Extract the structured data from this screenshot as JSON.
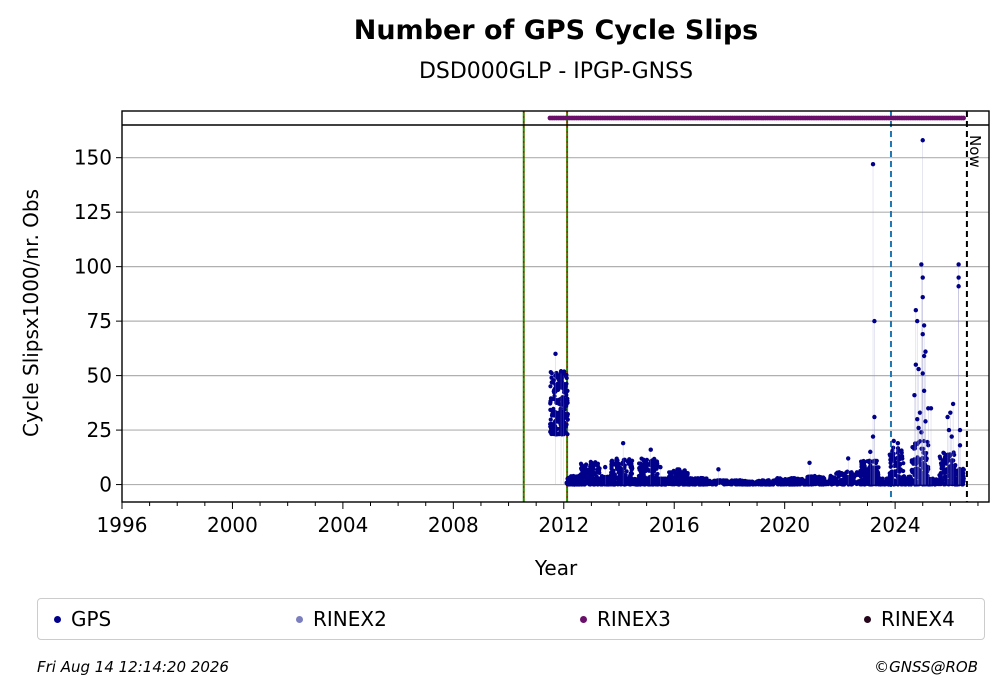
{
  "chart_data": {
    "type": "scatter",
    "title": "Number of GPS Cycle Slips",
    "subtitle": "DSD000GLP - IPGP-GNSS",
    "xlabel": "Year",
    "ylabel": "Cycle Slipsx1000/nr. Obs",
    "xlim": [
      1996,
      2027.4
    ],
    "ylim": [
      -8,
      165
    ],
    "x_ticks": [
      1996,
      2000,
      2004,
      2008,
      2012,
      2016,
      2020,
      2024
    ],
    "y_ticks": [
      0,
      25,
      50,
      75,
      100,
      125,
      150
    ],
    "grid": "horizontal",
    "vlines": [
      {
        "x": 2010.55,
        "color": "#2e8b00",
        "style": "dotted-red"
      },
      {
        "x": 2012.12,
        "color": "#2e8b00",
        "style": "dotted-red"
      },
      {
        "x": 2023.85,
        "color": "#1f77b4",
        "style": "dashed"
      },
      {
        "x": 2026.6,
        "color": "#000000",
        "style": "dashed",
        "label": "Now"
      }
    ],
    "rinex3_band": [
      [
        2011.5,
        2026.5
      ]
    ],
    "series": [
      {
        "name": "GPS",
        "color": "#00008b",
        "clusters": [
          {
            "x0": 2011.5,
            "x1": 2012.15,
            "ymin": 23,
            "ymax": 52,
            "n": 220
          },
          {
            "x0": 2012.1,
            "x1": 2012.6,
            "ymin": 0,
            "ymax": 4,
            "n": 90
          },
          {
            "x0": 2012.6,
            "x1": 2013.3,
            "ymin": 0,
            "ymax": 11,
            "n": 140
          },
          {
            "x0": 2013.3,
            "x1": 2013.7,
            "ymin": 0,
            "ymax": 4,
            "n": 60
          },
          {
            "x0": 2013.7,
            "x1": 2014.5,
            "ymin": 0,
            "ymax": 12,
            "n": 160
          },
          {
            "x0": 2014.5,
            "x1": 2014.7,
            "ymin": 0,
            "ymax": 3,
            "n": 30
          },
          {
            "x0": 2014.7,
            "x1": 2015.4,
            "ymin": 0,
            "ymax": 12,
            "n": 150
          },
          {
            "x0": 2015.4,
            "x1": 2015.8,
            "ymin": 0,
            "ymax": 3,
            "n": 60
          },
          {
            "x0": 2015.8,
            "x1": 2016.5,
            "ymin": 0,
            "ymax": 7,
            "n": 140
          },
          {
            "x0": 2016.5,
            "x1": 2017.2,
            "ymin": 0,
            "ymax": 3,
            "n": 110
          },
          {
            "x0": 2017.2,
            "x1": 2019.5,
            "ymin": 0,
            "ymax": 2,
            "n": 220
          },
          {
            "x0": 2019.5,
            "x1": 2020.8,
            "ymin": 0,
            "ymax": 3,
            "n": 120
          },
          {
            "x0": 2020.8,
            "x1": 2021.8,
            "ymin": 0,
            "ymax": 4,
            "n": 100
          },
          {
            "x0": 2021.8,
            "x1": 2022.7,
            "ymin": 0,
            "ymax": 6,
            "n": 90
          },
          {
            "x0": 2022.7,
            "x1": 2023.4,
            "ymin": 0,
            "ymax": 11,
            "n": 140
          },
          {
            "x0": 2023.4,
            "x1": 2023.8,
            "ymin": 0,
            "ymax": 3,
            "n": 50
          },
          {
            "x0": 2023.8,
            "x1": 2024.3,
            "ymin": 0,
            "ymax": 17,
            "n": 110
          },
          {
            "x0": 2024.3,
            "x1": 2024.6,
            "ymin": 0,
            "ymax": 4,
            "n": 40
          },
          {
            "x0": 2024.6,
            "x1": 2025.2,
            "ymin": 0,
            "ymax": 20,
            "n": 130
          },
          {
            "x0": 2025.2,
            "x1": 2025.6,
            "ymin": 0,
            "ymax": 3,
            "n": 40
          },
          {
            "x0": 2025.6,
            "x1": 2026.2,
            "ymin": 0,
            "ymax": 15,
            "n": 120
          },
          {
            "x0": 2026.2,
            "x1": 2026.5,
            "ymin": 0,
            "ymax": 8,
            "n": 40
          }
        ],
        "points": [
          {
            "x": 2011.7,
            "y": 60
          },
          {
            "x": 2011.9,
            "y": 52
          },
          {
            "x": 2012.0,
            "y": 51
          },
          {
            "x": 2014.15,
            "y": 19
          },
          {
            "x": 2015.15,
            "y": 16
          },
          {
            "x": 2015.5,
            "y": 8
          },
          {
            "x": 2013.5,
            "y": 8
          },
          {
            "x": 2017.6,
            "y": 7
          },
          {
            "x": 2020.9,
            "y": 10
          },
          {
            "x": 2022.3,
            "y": 12
          },
          {
            "x": 2023.2,
            "y": 147
          },
          {
            "x": 2023.25,
            "y": 75
          },
          {
            "x": 2023.25,
            "y": 31
          },
          {
            "x": 2023.2,
            "y": 22
          },
          {
            "x": 2023.1,
            "y": 15
          },
          {
            "x": 2023.95,
            "y": 20
          },
          {
            "x": 2024.1,
            "y": 19
          },
          {
            "x": 2024.75,
            "y": 80
          },
          {
            "x": 2024.8,
            "y": 75
          },
          {
            "x": 2024.75,
            "y": 55
          },
          {
            "x": 2024.85,
            "y": 53
          },
          {
            "x": 2024.7,
            "y": 41
          },
          {
            "x": 2024.9,
            "y": 33
          },
          {
            "x": 2024.8,
            "y": 30
          },
          {
            "x": 2024.85,
            "y": 26
          },
          {
            "x": 2024.95,
            "y": 24
          },
          {
            "x": 2025.0,
            "y": 158
          },
          {
            "x": 2024.95,
            "y": 101
          },
          {
            "x": 2025.0,
            "y": 95
          },
          {
            "x": 2025.0,
            "y": 86
          },
          {
            "x": 2025.05,
            "y": 73
          },
          {
            "x": 2025.0,
            "y": 69
          },
          {
            "x": 2025.1,
            "y": 61
          },
          {
            "x": 2025.05,
            "y": 59
          },
          {
            "x": 2025.0,
            "y": 51
          },
          {
            "x": 2025.05,
            "y": 43
          },
          {
            "x": 2025.2,
            "y": 35
          },
          {
            "x": 2025.3,
            "y": 35
          },
          {
            "x": 2025.1,
            "y": 29
          },
          {
            "x": 2025.9,
            "y": 31
          },
          {
            "x": 2026.0,
            "y": 33
          },
          {
            "x": 2025.95,
            "y": 25
          },
          {
            "x": 2026.1,
            "y": 37
          },
          {
            "x": 2026.05,
            "y": 22
          },
          {
            "x": 2026.3,
            "y": 101
          },
          {
            "x": 2026.3,
            "y": 95
          },
          {
            "x": 2026.3,
            "y": 91
          },
          {
            "x": 2026.35,
            "y": 25
          },
          {
            "x": 2026.35,
            "y": 18
          }
        ]
      },
      {
        "name": "RINEX2",
        "color": "#7b7fbd"
      },
      {
        "name": "RINEX3",
        "color": "#6a0f6a"
      },
      {
        "name": "RINEX4",
        "color": "#25061a"
      }
    ]
  },
  "legend": {
    "items": [
      {
        "label": "GPS",
        "color": "#00008b"
      },
      {
        "label": "RINEX2",
        "color": "#7b7fbd"
      },
      {
        "label": "RINEX3",
        "color": "#6a0f6a"
      },
      {
        "label": "RINEX4",
        "color": "#25061a"
      }
    ]
  },
  "footer": {
    "timestamp": "Fri Aug 14 12:14:20 2026",
    "copyright": "©GNSS@ROB"
  }
}
